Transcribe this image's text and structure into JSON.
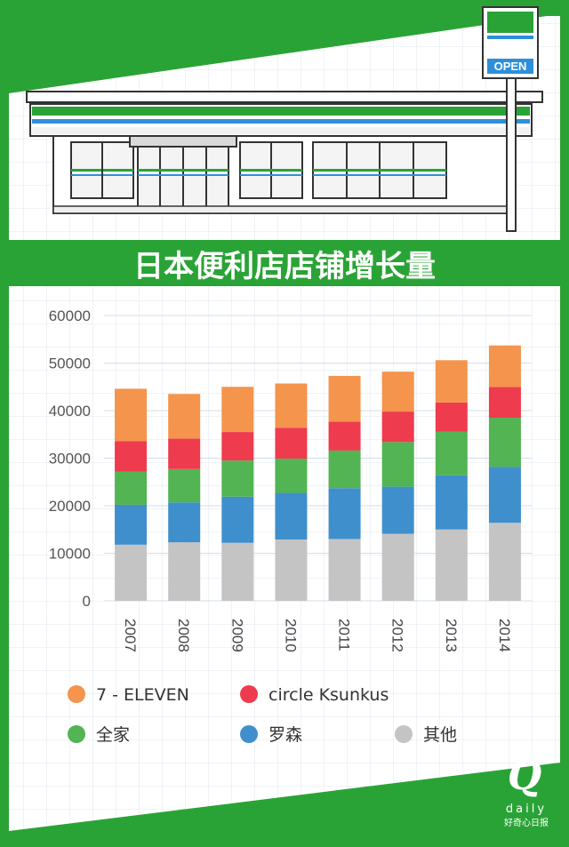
{
  "title": "日本便利店店铺增长量",
  "sign": {
    "open_label": "OPEN"
  },
  "logo": {
    "letter": "Q",
    "word": "daily",
    "cn": "好奇心日报"
  },
  "colors": {
    "background": "#2aa336",
    "seven_eleven": "#f4944d",
    "circle_ksunkus": "#ef3b4e",
    "family_mart": "#52b452",
    "lawson": "#3f8fcd",
    "others": "#c4c4c4"
  },
  "chart_data": {
    "type": "bar",
    "stacked": true,
    "categories": [
      "2007",
      "2008",
      "2009",
      "2010",
      "2011",
      "2012",
      "2013",
      "2014"
    ],
    "ylim": [
      0,
      60000
    ],
    "yticks": [
      "0",
      "10000",
      "20000",
      "30000",
      "40000",
      "50000",
      "60000"
    ],
    "grid": true,
    "legend_position": "bottom",
    "series": [
      {
        "key": "others",
        "name": "其他",
        "color": "#c4c4c4",
        "values": [
          11800,
          12300,
          12200,
          12900,
          13000,
          14100,
          15000,
          16400
        ]
      },
      {
        "key": "lawson",
        "name": "罗森",
        "color": "#3f8fcd",
        "values": [
          8400,
          8400,
          9700,
          9800,
          10700,
          9900,
          11400,
          11800
        ]
      },
      {
        "key": "family_mart",
        "name": "全家",
        "color": "#52b452",
        "values": [
          7000,
          7000,
          7600,
          7200,
          7900,
          9400,
          9200,
          10300
        ]
      },
      {
        "key": "circle_ksunkus",
        "name": "circle Ksunkus",
        "color": "#ef3b4e",
        "values": [
          6400,
          6400,
          6000,
          6500,
          6100,
          6400,
          6100,
          6500
        ]
      },
      {
        "key": "seven_eleven",
        "name": "7 - ELEVEN",
        "color": "#f4944d",
        "values": [
          11000,
          9400,
          9500,
          9300,
          9600,
          8400,
          8900,
          8700
        ]
      }
    ],
    "legend_order": [
      "seven_eleven",
      "circle_ksunkus",
      "family_mart",
      "lawson",
      "others"
    ]
  }
}
